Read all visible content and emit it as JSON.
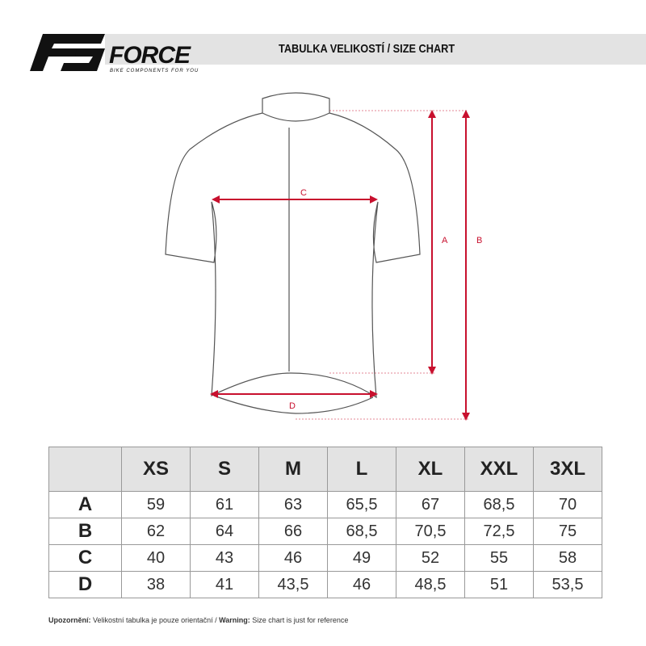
{
  "header": {
    "brand": "FORCE",
    "tagline": "BIKE COMPONENTS FOR YOU",
    "title": "TABULKA VELIKOSTÍ / SIZE CHART"
  },
  "diagram": {
    "labels": {
      "a": "A",
      "b": "B",
      "c": "C",
      "d": "D"
    },
    "accent": "#c8102e"
  },
  "table": {
    "columns": [
      "XS",
      "S",
      "M",
      "L",
      "XL",
      "XXL",
      "3XL"
    ],
    "rows": [
      {
        "label": "A",
        "values": [
          "59",
          "61",
          "63",
          "65,5",
          "67",
          "68,5",
          "70"
        ]
      },
      {
        "label": "B",
        "values": [
          "62",
          "64",
          "66",
          "68,5",
          "70,5",
          "72,5",
          "75"
        ]
      },
      {
        "label": "C",
        "values": [
          "40",
          "43",
          "46",
          "49",
          "52",
          "55",
          "58"
        ]
      },
      {
        "label": "D",
        "values": [
          "38",
          "41",
          "43,5",
          "46",
          "48,5",
          "51",
          "53,5"
        ]
      }
    ]
  },
  "footer": {
    "warn_cz_label": "Upozornění:",
    "warn_cz": " Velikostní tabulka je pouze orientační / ",
    "warn_en_label": "Warning:",
    "warn_en": " Size chart is just for reference"
  }
}
